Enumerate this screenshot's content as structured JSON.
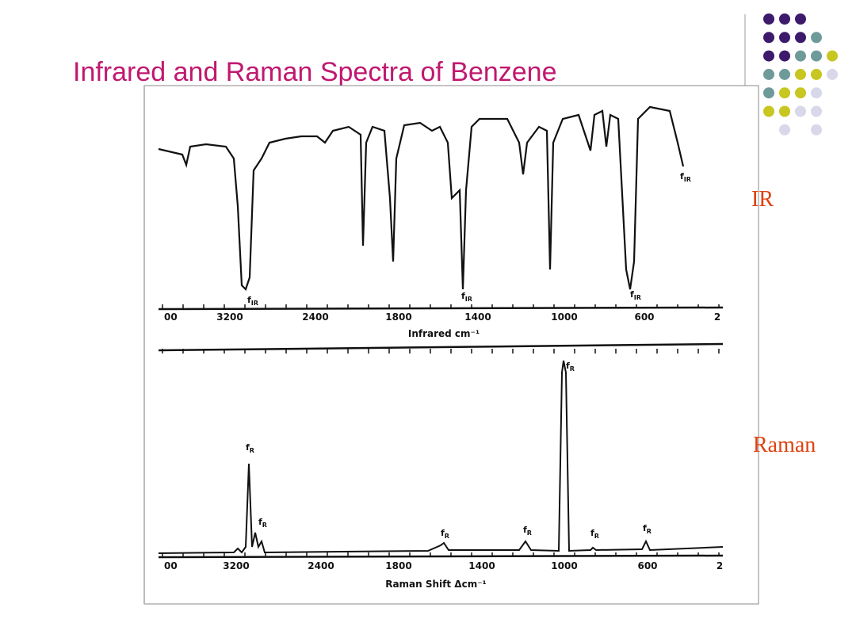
{
  "title": "Infrared and Raman Spectra of Benzene",
  "side_labels": {
    "ir": "IR",
    "raman": "Raman"
  },
  "figure": {
    "ir": {
      "axis_label": "Infrared cm⁻¹",
      "tick_labels": [
        "00",
        "3200",
        "2400",
        "1800",
        "1400",
        "1000",
        "600",
        "2"
      ],
      "peak_labels": [
        {
          "base": "f",
          "sub": "IR"
        },
        {
          "base": "f",
          "sub": "IR"
        },
        {
          "base": "f",
          "sub": "IR"
        },
        {
          "base": "f",
          "sub": "IR"
        }
      ]
    },
    "raman": {
      "axis_label": "Raman Shift  Δcm⁻¹",
      "tick_labels": [
        "00",
        "3200",
        "2400",
        "1800",
        "1400",
        "1000",
        "600",
        "2"
      ],
      "peak_labels": [
        {
          "base": "f",
          "sub": "R"
        },
        {
          "base": "f",
          "sub": "R"
        },
        {
          "base": "f",
          "sub": "R"
        },
        {
          "base": "f",
          "sub": "R"
        },
        {
          "base": "f",
          "sub": "R"
        },
        {
          "base": "f",
          "sub": "R"
        },
        {
          "base": "f",
          "sub": "R"
        }
      ]
    }
  }
}
